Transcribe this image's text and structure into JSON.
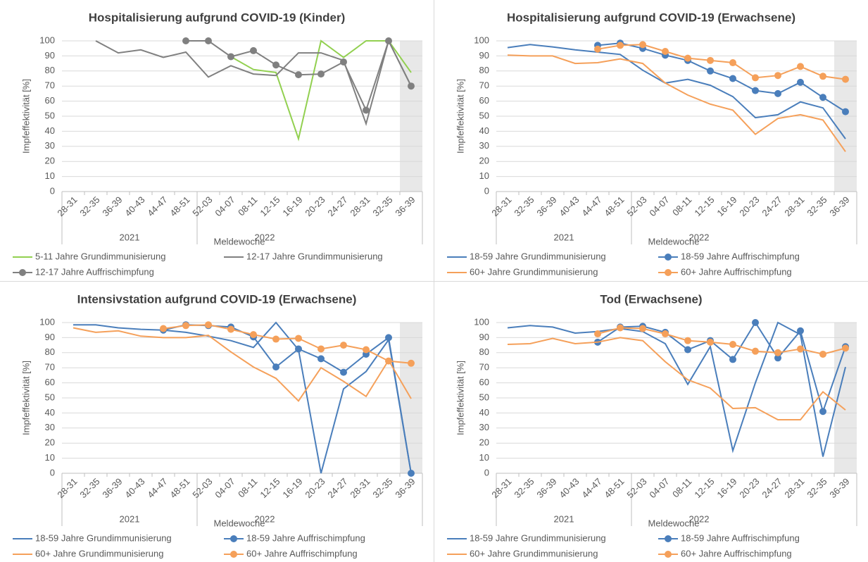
{
  "chart_data": [
    {
      "type": "line",
      "title": "Hospitalisierung aufgrund COVID-19 (Kinder)",
      "y_label": "Impfeffektivität [%]",
      "x_label": "Meldewoche",
      "x_groups": [
        "2021",
        "2022"
      ],
      "categories": [
        "28-31",
        "32-35",
        "36-39",
        "40-43",
        "44-47",
        "48-51",
        "52-03",
        "04-07",
        "08-11",
        "12-15",
        "16-19",
        "20-23",
        "24-27",
        "28-31",
        "32-35",
        "36-39"
      ],
      "ylim": [
        0,
        100
      ],
      "yticks": [
        0,
        10,
        20,
        30,
        40,
        50,
        60,
        70,
        80,
        90,
        100
      ],
      "grid": true,
      "series": [
        {
          "name": "5-11 Jahre Grundimmunisierung",
          "color": "#92d050",
          "marker": false,
          "values": [
            null,
            null,
            null,
            null,
            null,
            null,
            null,
            89.5,
            81,
            79,
            35,
            100,
            89,
            100,
            100,
            79
          ]
        },
        {
          "name": "12-17 Jahre Grundimmunisierung",
          "color": "#808080",
          "marker": false,
          "values": [
            null,
            100,
            92,
            94,
            89,
            92.5,
            76,
            83.5,
            78,
            77,
            92,
            92,
            87,
            45,
            100,
            70
          ]
        },
        {
          "name": "12-17 Jahre Auffrischimpfung",
          "color": "#808080",
          "marker": true,
          "values": [
            null,
            null,
            null,
            null,
            null,
            100,
            100,
            89.5,
            93.5,
            84,
            77.5,
            78,
            86,
            54,
            100,
            70
          ]
        }
      ]
    },
    {
      "type": "line",
      "title": "Hospitalisierung aufgrund COVID-19 (Erwachsene)",
      "y_label": "Impfeffektivität [%]",
      "x_label": "Meldewoche",
      "x_groups": [
        "2021",
        "2022"
      ],
      "categories": [
        "28-31",
        "32-35",
        "36-39",
        "40-43",
        "44-47",
        "48-51",
        "52-03",
        "04-07",
        "08-11",
        "12-15",
        "16-19",
        "20-23",
        "24-27",
        "28-31",
        "32-35",
        "36-39"
      ],
      "ylim": [
        0,
        100
      ],
      "yticks": [
        0,
        10,
        20,
        30,
        40,
        50,
        60,
        70,
        80,
        90,
        100
      ],
      "grid": true,
      "series": [
        {
          "name": "18-59 Jahre Grundimmunisierung",
          "color": "#4a7ebb",
          "marker": false,
          "values": [
            95.5,
            97.5,
            96,
            94,
            92.5,
            91,
            80.5,
            72,
            74.5,
            70.5,
            63,
            49,
            51,
            59.5,
            55.5,
            35
          ]
        },
        {
          "name": "18-59 Jahre Auffrischimpfung",
          "color": "#4a7ebb",
          "marker": true,
          "values": [
            null,
            null,
            null,
            null,
            97,
            98.5,
            95,
            90.5,
            87,
            80,
            75,
            67,
            65,
            72.5,
            62.5,
            53
          ]
        },
        {
          "name": "60+ Jahre Grundimmunisierung",
          "color": "#f5a05a",
          "marker": false,
          "values": [
            90.5,
            90,
            90,
            85,
            85.5,
            88,
            85,
            72,
            64,
            58,
            54,
            38,
            48.5,
            51,
            47.5,
            26.5
          ]
        },
        {
          "name": "60+ Jahre Auffrischimpfung",
          "color": "#f5a05a",
          "marker": true,
          "values": [
            null,
            null,
            null,
            null,
            94.5,
            97,
            97.5,
            93,
            88.5,
            87,
            85.5,
            75.5,
            77,
            83,
            76.5,
            74.5
          ]
        }
      ]
    },
    {
      "type": "line",
      "title": "Intensivstation aufgrund COVID-19 (Erwachsene)",
      "y_label": "Impfeffektivität [%]",
      "x_label": "Meldewoche",
      "x_groups": [
        "2021",
        "2022"
      ],
      "categories": [
        "28-31",
        "32-35",
        "36-39",
        "40-43",
        "44-47",
        "48-51",
        "52-03",
        "04-07",
        "08-11",
        "12-15",
        "16-19",
        "20-23",
        "24-27",
        "28-31",
        "32-35",
        "36-39"
      ],
      "ylim": [
        0,
        100
      ],
      "yticks": [
        0,
        10,
        20,
        30,
        40,
        50,
        60,
        70,
        80,
        90,
        100
      ],
      "grid": true,
      "series": [
        {
          "name": "18-59 Jahre Grundimmunisierung",
          "color": "#4a7ebb",
          "marker": false,
          "values": [
            98.5,
            98.5,
            96.5,
            95.5,
            95,
            93.5,
            91,
            88,
            83.5,
            100,
            82,
            0,
            56,
            67.5,
            88.5,
            0
          ]
        },
        {
          "name": "18-59 Jahre Auffrischimpfung",
          "color": "#4a7ebb",
          "marker": true,
          "values": [
            null,
            null,
            null,
            null,
            95,
            98.5,
            98,
            97,
            90.5,
            70.5,
            82.5,
            76,
            67,
            79,
            90,
            0
          ]
        },
        {
          "name": "60+ Jahre Grundimmunisierung",
          "color": "#f5a05a",
          "marker": false,
          "values": [
            96.5,
            93.5,
            94.5,
            91,
            90,
            90,
            91.5,
            80.5,
            70.5,
            63,
            48,
            70,
            61,
            51,
            75,
            49.5
          ]
        },
        {
          "name": "60+ Jahre Auffrischimpfung",
          "color": "#f5a05a",
          "marker": true,
          "values": [
            null,
            null,
            null,
            null,
            96,
            98,
            98.5,
            95.5,
            92,
            89,
            89.5,
            82.5,
            85,
            82,
            74.5,
            73
          ]
        }
      ]
    },
    {
      "type": "line",
      "title": "Tod (Erwachsene)",
      "y_label": "Impfeffektivität [%]",
      "x_label": "Meldewoche",
      "x_groups": [
        "2021",
        "2022"
      ],
      "categories": [
        "28-31",
        "32-35",
        "36-39",
        "40-43",
        "44-47",
        "48-51",
        "52-03",
        "04-07",
        "08-11",
        "12-15",
        "16-19",
        "20-23",
        "24-27",
        "28-31",
        "32-35",
        "36-39"
      ],
      "ylim": [
        0,
        100
      ],
      "yticks": [
        0,
        10,
        20,
        30,
        40,
        50,
        60,
        70,
        80,
        90,
        100
      ],
      "grid": true,
      "series": [
        {
          "name": "18-59 Jahre Grundimmunisierung",
          "color": "#4a7ebb",
          "marker": false,
          "values": [
            96.5,
            98,
            97,
            93,
            94,
            96,
            94,
            86,
            59,
            84,
            15,
            60,
            100,
            92,
            11,
            70.5
          ]
        },
        {
          "name": "18-59 Jahre Auffrischimpfung",
          "color": "#4a7ebb",
          "marker": true,
          "values": [
            null,
            null,
            null,
            null,
            87,
            97,
            97.5,
            93.5,
            82,
            88,
            75.5,
            100,
            76.5,
            94.5,
            41,
            84
          ]
        },
        {
          "name": "60+ Jahre Grundimmunisierung",
          "color": "#f5a05a",
          "marker": false,
          "values": [
            85.5,
            86,
            89.5,
            86,
            87,
            90,
            88,
            74,
            62,
            56.5,
            43,
            43.5,
            35.5,
            35.5,
            54,
            42
          ]
        },
        {
          "name": "60+ Jahre Auffrischimpfung",
          "color": "#f5a05a",
          "marker": true,
          "values": [
            null,
            null,
            null,
            null,
            92.5,
            96.5,
            96,
            92.5,
            88,
            87,
            85.5,
            81,
            80,
            82.5,
            79,
            83
          ]
        }
      ]
    }
  ]
}
